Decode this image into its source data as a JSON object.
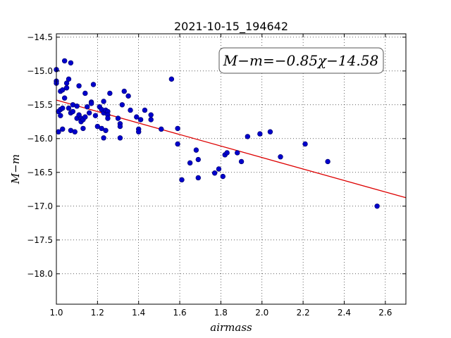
{
  "chart_data": {
    "type": "scatter",
    "title": "2021-10-15_194642",
    "xlabel": "airmass",
    "ylabel": "M−m",
    "xlim": [
      1.0,
      2.7
    ],
    "ylim": [
      -18.45,
      -14.45
    ],
    "y_inverted": true,
    "grid": true,
    "grid_style": "dotted",
    "xticks": [
      "1.0",
      "1.2",
      "1.4",
      "1.6",
      "1.8",
      "2.0",
      "2.2",
      "2.4",
      "2.6"
    ],
    "yticks": [
      "−14.5",
      "−15.0",
      "−15.5",
      "−16.0",
      "−16.5",
      "−17.0",
      "−17.5",
      "−18.0"
    ],
    "annotation": "M−m=−0.85χ−14.58",
    "colors": {
      "points": "#0000cc",
      "fit_line": "#dd0000"
    },
    "fit": {
      "slope": -0.85,
      "intercept": -14.58,
      "x_range": [
        1.0,
        2.7
      ]
    },
    "series": [
      {
        "x": [
          1.0,
          1.0,
          1.0,
          1.01,
          1.01,
          1.02,
          1.02,
          1.02,
          1.03,
          1.03,
          1.03,
          1.04,
          1.04,
          1.05,
          1.05,
          1.06,
          1.06,
          1.07,
          1.07,
          1.07,
          1.08,
          1.08,
          1.09,
          1.1,
          1.1,
          1.11,
          1.11,
          1.12,
          1.12,
          1.13,
          1.13,
          1.14,
          1.14,
          1.15,
          1.16,
          1.17,
          1.17,
          1.18,
          1.19,
          1.2,
          1.21,
          1.22,
          1.22,
          1.23,
          1.23,
          1.23,
          1.24,
          1.24,
          1.25,
          1.25,
          1.25,
          1.26,
          1.3,
          1.31,
          1.31,
          1.31,
          1.32,
          1.33,
          1.35,
          1.36,
          1.39,
          1.4,
          1.4,
          1.41,
          1.43,
          1.46,
          1.46,
          1.51,
          1.56,
          1.59,
          1.59,
          1.61,
          1.65,
          1.68,
          1.69,
          1.69,
          1.77,
          1.79,
          1.81,
          1.82,
          1.83,
          1.88,
          1.9,
          1.93,
          1.99,
          2.04,
          2.09,
          2.21,
          2.32,
          2.56
        ],
        "y": [
          -14.98,
          -15.15,
          -15.18,
          -15.6,
          -15.9,
          -15.3,
          -15.57,
          -15.66,
          -15.28,
          -15.55,
          -15.86,
          -14.85,
          -15.4,
          -15.25,
          -15.18,
          -15.12,
          -15.55,
          -14.88,
          -15.62,
          -15.88,
          -15.5,
          -15.6,
          -15.9,
          -15.52,
          -15.7,
          -15.22,
          -15.65,
          -15.7,
          -15.75,
          -15.72,
          -15.85,
          -15.33,
          -15.68,
          -15.53,
          -15.62,
          -15.46,
          -15.48,
          -15.2,
          -15.66,
          -15.82,
          -15.53,
          -15.57,
          -15.85,
          -15.45,
          -15.62,
          -15.99,
          -15.58,
          -15.88,
          -15.6,
          -15.65,
          -15.7,
          -15.33,
          -15.7,
          -15.78,
          -15.82,
          -15.99,
          -15.5,
          -15.3,
          -15.37,
          -15.58,
          -15.68,
          -15.86,
          -15.9,
          -15.72,
          -15.58,
          -15.65,
          -15.72,
          -15.86,
          -15.12,
          -15.85,
          -16.08,
          -16.61,
          -16.36,
          -16.17,
          -16.31,
          -16.58,
          -16.51,
          -16.45,
          -16.56,
          -16.24,
          -16.21,
          -16.21,
          -16.34,
          -15.97,
          -15.93,
          -15.9,
          -16.27,
          -16.08,
          -16.34,
          -17.0
        ]
      }
    ]
  }
}
